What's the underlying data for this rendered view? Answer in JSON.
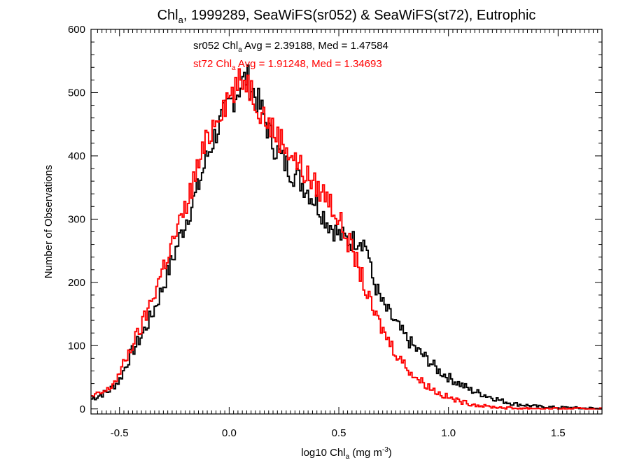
{
  "chart_data": {
    "type": "line",
    "title": {
      "pre": "Chl",
      "sub": "a",
      "post": ", 1999289, SeaWiFS(sr052) & SeaWiFS(st72), Eutrophic"
    },
    "xlabel": {
      "pre": "log10 Chl",
      "sub": "a",
      "mid": " (mg m",
      "sup": "-3",
      "post": ")"
    },
    "ylabel": "Number of Observations",
    "xlim": [
      -0.63,
      1.7
    ],
    "ylim": [
      -8,
      600
    ],
    "xticks": [
      -0.5,
      0.0,
      0.5,
      1.0,
      1.5
    ],
    "xtick_labels": [
      "-0.5",
      "0.0",
      "0.5",
      "1.0",
      "1.5"
    ],
    "yticks": [
      0,
      100,
      200,
      300,
      400,
      500,
      600
    ],
    "ytick_labels": [
      "0",
      "100",
      "200",
      "300",
      "400",
      "500",
      "600"
    ],
    "grid": false,
    "annotations": [
      {
        "pre": "sr052 Chl",
        "sub": "a",
        "post": " Avg = 2.39188, Med = 1.47584",
        "color": "#000000"
      },
      {
        "pre": "st72 Chl",
        "sub": "a",
        "post": " Avg = 1.91248, Med = 1.34693",
        "color": "#ff0000"
      }
    ],
    "series": [
      {
        "color": "#000000",
        "x": [
          -0.63,
          -0.55,
          -0.5,
          -0.45,
          -0.4,
          -0.35,
          -0.3,
          -0.25,
          -0.2,
          -0.15,
          -0.1,
          -0.05,
          0.0,
          0.05,
          0.08,
          0.1,
          0.15,
          0.2,
          0.25,
          0.3,
          0.35,
          0.4,
          0.45,
          0.5,
          0.55,
          0.6,
          0.63,
          0.65,
          0.7,
          0.75,
          0.8,
          0.85,
          0.9,
          0.95,
          1.0,
          1.05,
          1.1,
          1.15,
          1.2,
          1.25,
          1.3,
          1.35,
          1.4,
          1.45,
          1.5,
          1.55,
          1.6,
          1.65,
          1.7
        ],
        "y": [
          15,
          28,
          45,
          85,
          115,
          150,
          195,
          245,
          295,
          340,
          400,
          445,
          480,
          510,
          525,
          510,
          470,
          420,
          390,
          370,
          350,
          325,
          295,
          275,
          265,
          270,
          255,
          210,
          165,
          140,
          115,
          95,
          80,
          62,
          50,
          40,
          30,
          24,
          18,
          12,
          8,
          6,
          4,
          3,
          2,
          2,
          1,
          1,
          0
        ]
      },
      {
        "color": "#ff0000",
        "x": [
          -0.63,
          -0.55,
          -0.5,
          -0.45,
          -0.4,
          -0.35,
          -0.3,
          -0.25,
          -0.2,
          -0.15,
          -0.1,
          -0.05,
          0.0,
          0.05,
          0.08,
          0.1,
          0.15,
          0.2,
          0.25,
          0.3,
          0.35,
          0.4,
          0.45,
          0.5,
          0.55,
          0.6,
          0.63,
          0.65,
          0.7,
          0.75,
          0.8,
          0.85,
          0.9,
          0.95,
          1.0,
          1.05,
          1.1,
          1.15,
          1.2,
          1.25,
          1.3,
          1.35,
          1.4,
          1.45,
          1.5,
          1.55,
          1.6,
          1.65,
          1.7
        ],
        "y": [
          18,
          30,
          55,
          95,
          130,
          175,
          225,
          270,
          315,
          375,
          425,
          470,
          495,
          515,
          522,
          505,
          470,
          440,
          420,
          395,
          370,
          350,
          335,
          300,
          260,
          215,
          180,
          160,
          125,
          95,
          70,
          50,
          38,
          26,
          18,
          12,
          8,
          5,
          3,
          2,
          1,
          1,
          1,
          0,
          0,
          0,
          0,
          0,
          0
        ]
      }
    ]
  }
}
